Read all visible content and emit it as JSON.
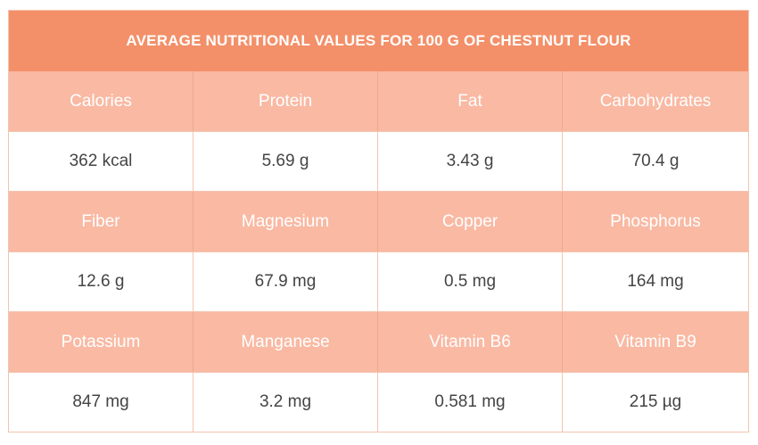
{
  "title": "AVERAGE NUTRITIONAL VALUES FOR 100 G OF CHESTNUT FLOUR",
  "colors": {
    "title_bg": "#f39069",
    "header_bg": "#f9b9a3",
    "value_bg": "#ffffff",
    "header_text": "#ffffff",
    "value_text": "#444444",
    "border": "#f3c4ae"
  },
  "rows": [
    {
      "headers": [
        "Calories",
        "Protein",
        "Fat",
        "Carbohydrates"
      ],
      "values": [
        "362 kcal",
        "5.69 g",
        "3.43 g",
        "70.4 g"
      ]
    },
    {
      "headers": [
        "Fiber",
        "Magnesium",
        "Copper",
        "Phosphorus"
      ],
      "values": [
        "12.6 g",
        "67.9 mg",
        "0.5 mg",
        "164 mg"
      ]
    },
    {
      "headers": [
        "Potassium",
        "Manganese",
        "Vitamin B6",
        "Vitamin B9"
      ],
      "values": [
        "847 mg",
        "3.2 mg",
        "0.581 mg",
        "215 µg"
      ]
    }
  ]
}
